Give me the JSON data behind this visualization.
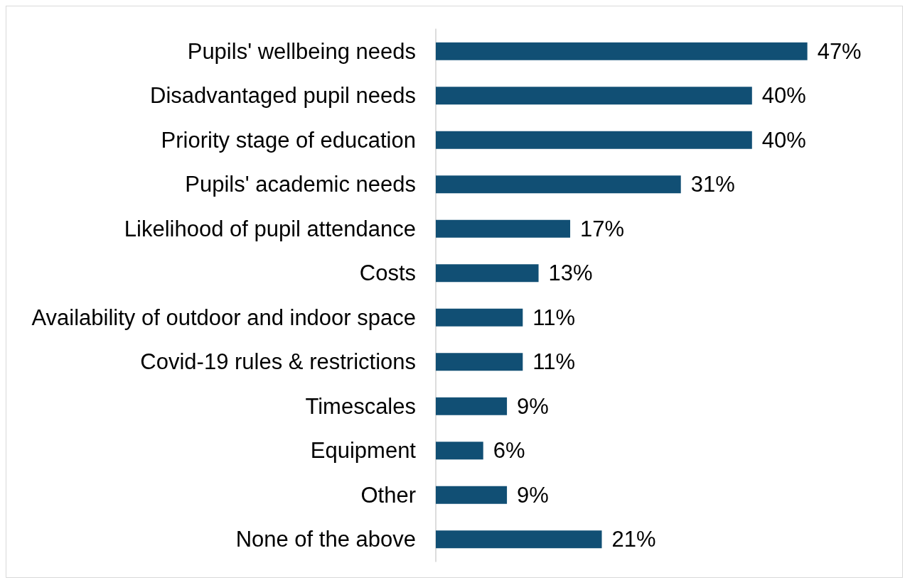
{
  "chart_data": {
    "type": "bar",
    "orientation": "horizontal",
    "categories": [
      "Pupils' wellbeing needs",
      "Disadvantaged pupil needs",
      "Priority stage of education",
      "Pupils' academic needs",
      "Likelihood of pupil attendance",
      "Costs",
      "Availability of outdoor and indoor space",
      "Covid-19 rules & restrictions",
      "Timescales",
      "Equipment",
      "Other",
      "None of the above"
    ],
    "values": [
      47,
      40,
      40,
      31,
      17,
      13,
      11,
      11,
      9,
      6,
      9,
      21
    ],
    "value_labels": [
      "47%",
      "40%",
      "40%",
      "31%",
      "17%",
      "13%",
      "11%",
      "11%",
      "9%",
      "6%",
      "9%",
      "21%"
    ],
    "color": "#114f74",
    "tick_labels": "y"
  }
}
